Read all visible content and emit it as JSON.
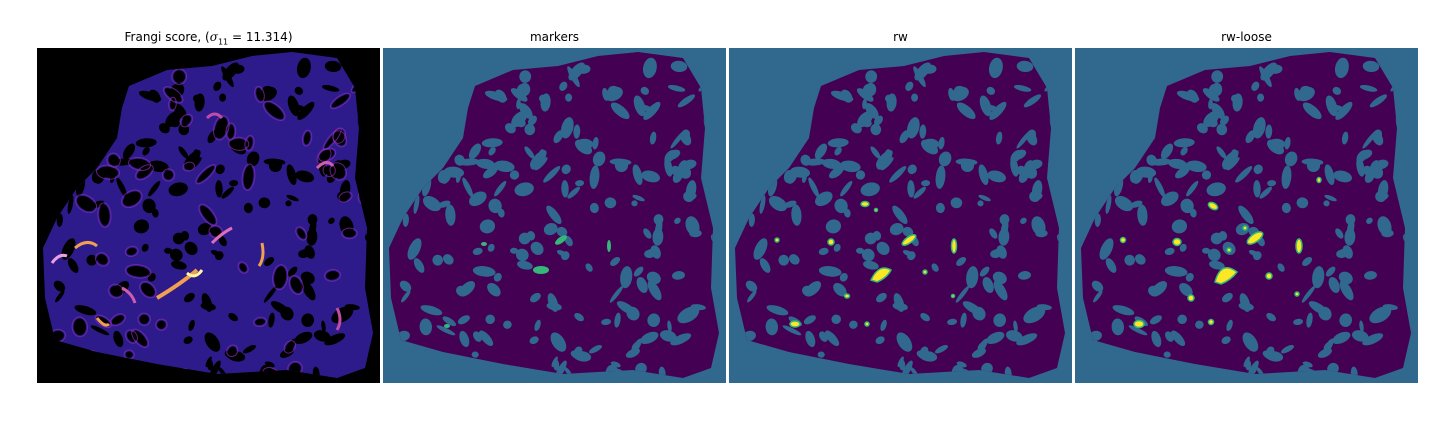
{
  "figure": {
    "panels": [
      {
        "id": "frangi",
        "title_prefix": "Frangi score, (",
        "title_sigma": "σ",
        "title_sub": "11",
        "title_suffix": " = 11.314)"
      },
      {
        "id": "markers",
        "title": "markers"
      },
      {
        "id": "rw",
        "title": "rw"
      },
      {
        "id": "rwloose",
        "title": "rw-loose"
      }
    ]
  },
  "colors": {
    "frangi_background": "#000000",
    "frangi_low": "#2d1b8c",
    "frangi_mid": "#8a2bb5",
    "frangi_high": "#f0a050",
    "frangi_peak": "#fff6a0",
    "label_background": "#31688e",
    "label_tissue": "#440154",
    "label_marker": "#35b779",
    "label_vessel": "#fde725"
  }
}
